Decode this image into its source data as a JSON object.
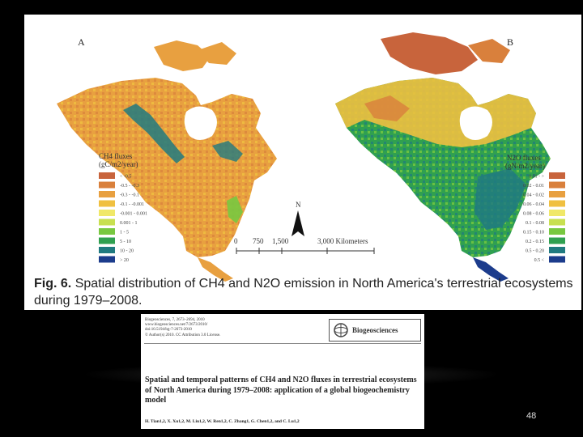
{
  "figure": {
    "panel_a_letter": "A",
    "panel_b_letter": "B",
    "caption_label": "Fig. 6.",
    "caption_text": "Spatial distribution of CH4 and N2O emission in North America's terrestrial ecosystems during 1979–2008.",
    "ch4_legend": {
      "title_line1": "CH4 fluxes",
      "title_line2": "(gC/m2/year)",
      "classes": [
        {
          "label": "< -0.5",
          "color": "#c8643c"
        },
        {
          "label": "-0.5 - -0.3",
          "color": "#d9803c"
        },
        {
          "label": "-0.3 - -0.1",
          "color": "#e8a040"
        },
        {
          "label": "-0.1 - -0.001",
          "color": "#f0c040"
        },
        {
          "label": "-0.001 - 0.001",
          "color": "#f0e868"
        },
        {
          "label": "0.001 - 1",
          "color": "#c8e050"
        },
        {
          "label": "1 - 5",
          "color": "#78c840"
        },
        {
          "label": "5 - 10",
          "color": "#30a050"
        },
        {
          "label": "10 - 20",
          "color": "#207a80"
        },
        {
          "label": "> 20",
          "color": "#1c3c8c"
        }
      ]
    },
    "n2o_legend": {
      "title_line1": "N2O fluxes",
      "title_line2": "(gN/m2/year)",
      "classes": [
        {
          "label": "0.01 - >",
          "color": "#c8643c"
        },
        {
          "label": "0.02 - 0.01",
          "color": "#d9803c"
        },
        {
          "label": "0.04 - 0.02",
          "color": "#e8a040"
        },
        {
          "label": "0.06 - 0.04",
          "color": "#f0c040"
        },
        {
          "label": "0.08 - 0.06",
          "color": "#f0e868"
        },
        {
          "label": "0.1 - 0.08",
          "color": "#c8e050"
        },
        {
          "label": "0.15 - 0.10",
          "color": "#78c840"
        },
        {
          "label": "0.2 - 0.15",
          "color": "#30a050"
        },
        {
          "label": "0.5 - 0.20",
          "color": "#207a80"
        },
        {
          "label": "0.5 <",
          "color": "#1c3c8c"
        }
      ]
    },
    "north_arrow": "N",
    "scale_labels": [
      "0",
      "750",
      "1,500",
      "3,000 Kilometers"
    ]
  },
  "paper": {
    "meta_lines": [
      "Biogeosciences, 7, 2673–2694, 2010",
      "www.biogeosciences.net/7/2673/2010/",
      "doi:10.5194/bg-7-2673-2010",
      "© Author(s) 2010. CC Attribution 3.0 License."
    ],
    "journal_name": "Biogeosciences",
    "title": "Spatial and temporal patterns of CH4 and N2O fluxes in terrestrial ecosystems of North America during 1979–2008: application of a global biogeochemistry model",
    "authors": "H. Tian1,2, X. Xu1,2, M. Liu1,2, W. Ren1,2, C. Zhang1, G. Chen1,2, and C. Lu1,2"
  },
  "slide": {
    "page_number": "48"
  },
  "colors": {
    "slide_background": "#000000",
    "ch4_dominant": "#e8a040",
    "n2o_dominant": "#30a050",
    "water": "#ffffff"
  }
}
